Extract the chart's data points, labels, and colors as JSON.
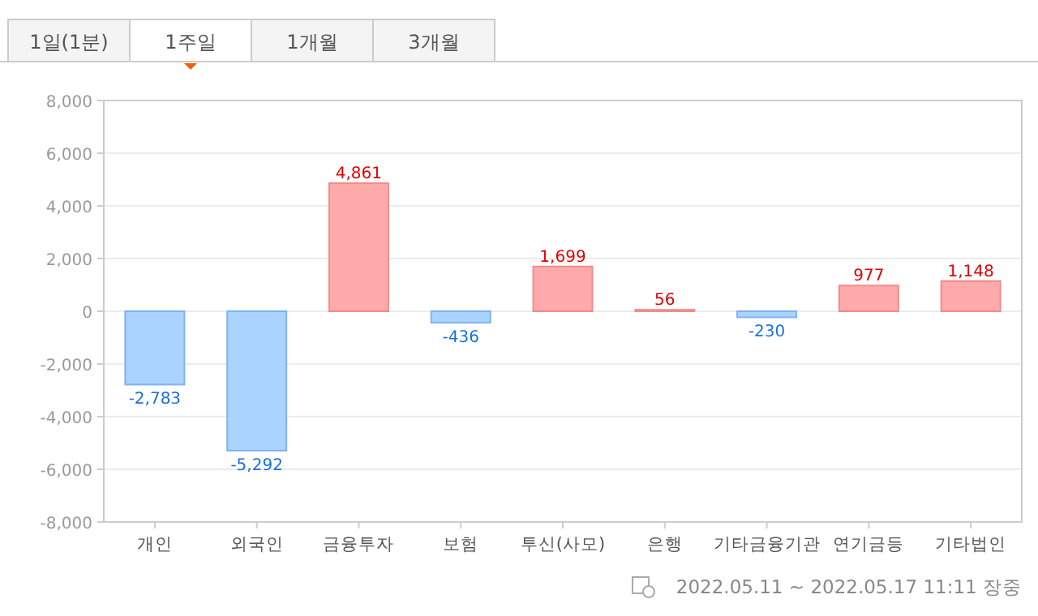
{
  "chart_data": {
    "type": "bar",
    "categories": [
      "개인",
      "외국인",
      "금융투자",
      "보험",
      "투신(사모)",
      "은행",
      "기타금융기관",
      "연기금등",
      "기타법인"
    ],
    "values": [
      -2783,
      -5292,
      4861,
      -436,
      1699,
      56,
      -230,
      977,
      1148
    ],
    "colors": [
      "#aad4ff",
      "#aad4ff",
      "#ffaaaa",
      "#aad4ff",
      "#ffaaaa",
      "#ffaaaa",
      "#aad4ff",
      "#ffaaaa",
      "#ffaaaa"
    ],
    "ylim": [
      -8000,
      8000
    ],
    "yticks": [
      {
        "value": -8000,
        "label": "-8,000"
      },
      {
        "value": -6000,
        "label": "-6,000"
      },
      {
        "value": -4000,
        "label": "-4,000"
      },
      {
        "value": -2000,
        "label": "-2,000"
      },
      0,
      {
        "value": 2000,
        "label": "2,000"
      },
      {
        "value": 4000,
        "label": "4,000"
      },
      {
        "value": 6000,
        "label": "6,000"
      },
      {
        "value": 8000,
        "label": "8,000"
      }
    ],
    "grid": "y",
    "value_labels": [
      "-2,783",
      "-5,292",
      "4,861",
      "-436",
      "1,699",
      "56",
      "-230",
      "977",
      "1,148"
    ],
    "annotations": [
      "1일(1분)",
      "1주일",
      "1개월",
      "3개월",
      "2022.05.11 ~ 2022.05.17 11:11 장중"
    ]
  }
}
